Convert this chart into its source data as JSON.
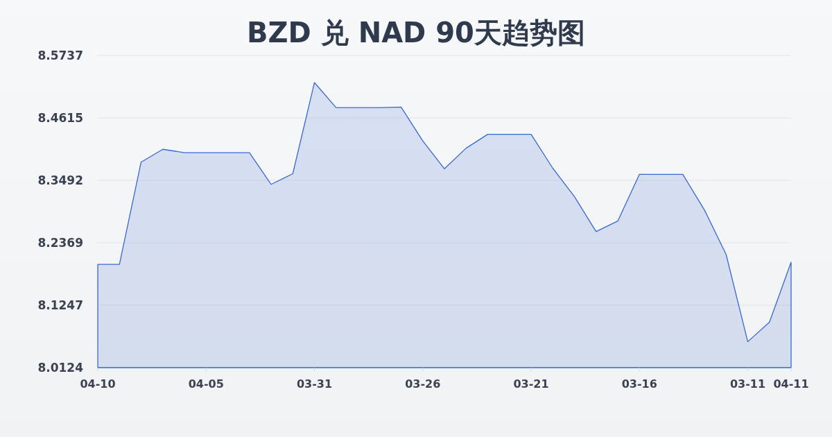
{
  "chart_data": {
    "type": "area",
    "title": "BZD 兑 NAD 90天趋势图",
    "categories": [
      "04-10",
      null,
      null,
      null,
      null,
      "04-05",
      null,
      null,
      null,
      null,
      "03-31",
      null,
      null,
      null,
      null,
      "03-26",
      null,
      null,
      null,
      null,
      "03-21",
      null,
      null,
      null,
      null,
      "03-16",
      null,
      null,
      null,
      null,
      "03-11",
      null,
      "04-11"
    ],
    "values": [
      8.198,
      8.198,
      8.382,
      8.405,
      8.399,
      8.399,
      8.399,
      8.399,
      8.342,
      8.361,
      8.525,
      8.48,
      8.48,
      8.48,
      8.481,
      8.42,
      8.37,
      8.407,
      8.432,
      8.432,
      8.432,
      8.371,
      8.32,
      8.257,
      8.276,
      8.36,
      8.36,
      8.36,
      8.296,
      8.216,
      8.059,
      8.094,
      8.202
    ],
    "color": "#3768d0",
    "ylim": [
      8.0124,
      8.5737
    ],
    "yticks": [
      8.0124,
      8.1247,
      8.2369,
      8.3492,
      8.4615,
      8.5737
    ],
    "grid": "y"
  }
}
